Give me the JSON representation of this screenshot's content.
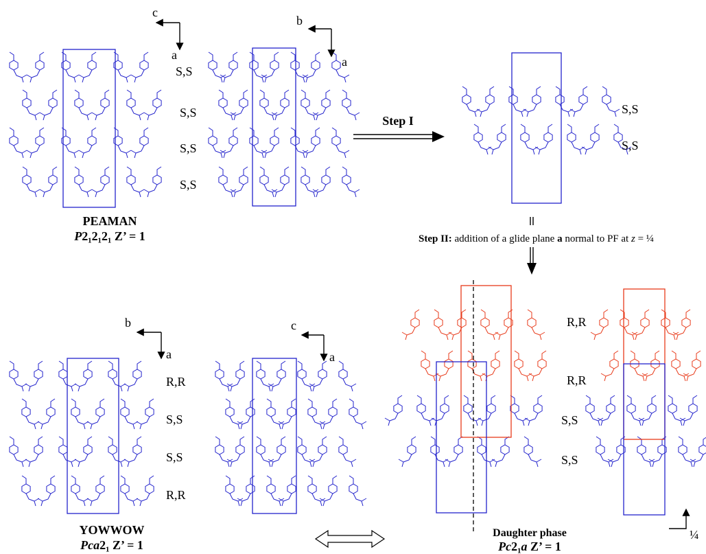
{
  "top_left": {
    "axis1": [
      "c",
      "a"
    ],
    "axis2": [
      "b",
      "a"
    ],
    "layer_labels": [
      "S,S",
      "S,S",
      "S,S",
      "S,S"
    ],
    "name": "PEAMAN",
    "group": {
      "italic": "P",
      "rest": "2₁2₁2₁ Z’ = 1"
    }
  },
  "step1": {
    "label": "Step I",
    "layer_labels": [
      "S,S",
      "S,S"
    ]
  },
  "step2": {
    "bold": "Step II:",
    "text1": " addition of a glide plane ",
    "bold_a": "a",
    "text2": "  normal to PF at ",
    "z": "z",
    "text3": " = ¼"
  },
  "bottom_left": {
    "axis1": [
      "b",
      "a"
    ],
    "axis2": [
      "c",
      "a"
    ],
    "layer_labels": [
      "R,R",
      "S,S",
      "S,S",
      "R,R"
    ],
    "name": "YOWWOW",
    "group": {
      "italic": "Pca",
      "rest": "2₁ Z’ = 1"
    }
  },
  "bottom_right": {
    "layer_labels": [
      "R,R",
      "R,R",
      "S,S",
      "S,S"
    ],
    "name": "Daughter phase",
    "group": {
      "italic1": "Pc",
      "mid": "2₁",
      "italic2": "a",
      "rest": " Z’ = 1"
    },
    "quarter": "¼"
  }
}
